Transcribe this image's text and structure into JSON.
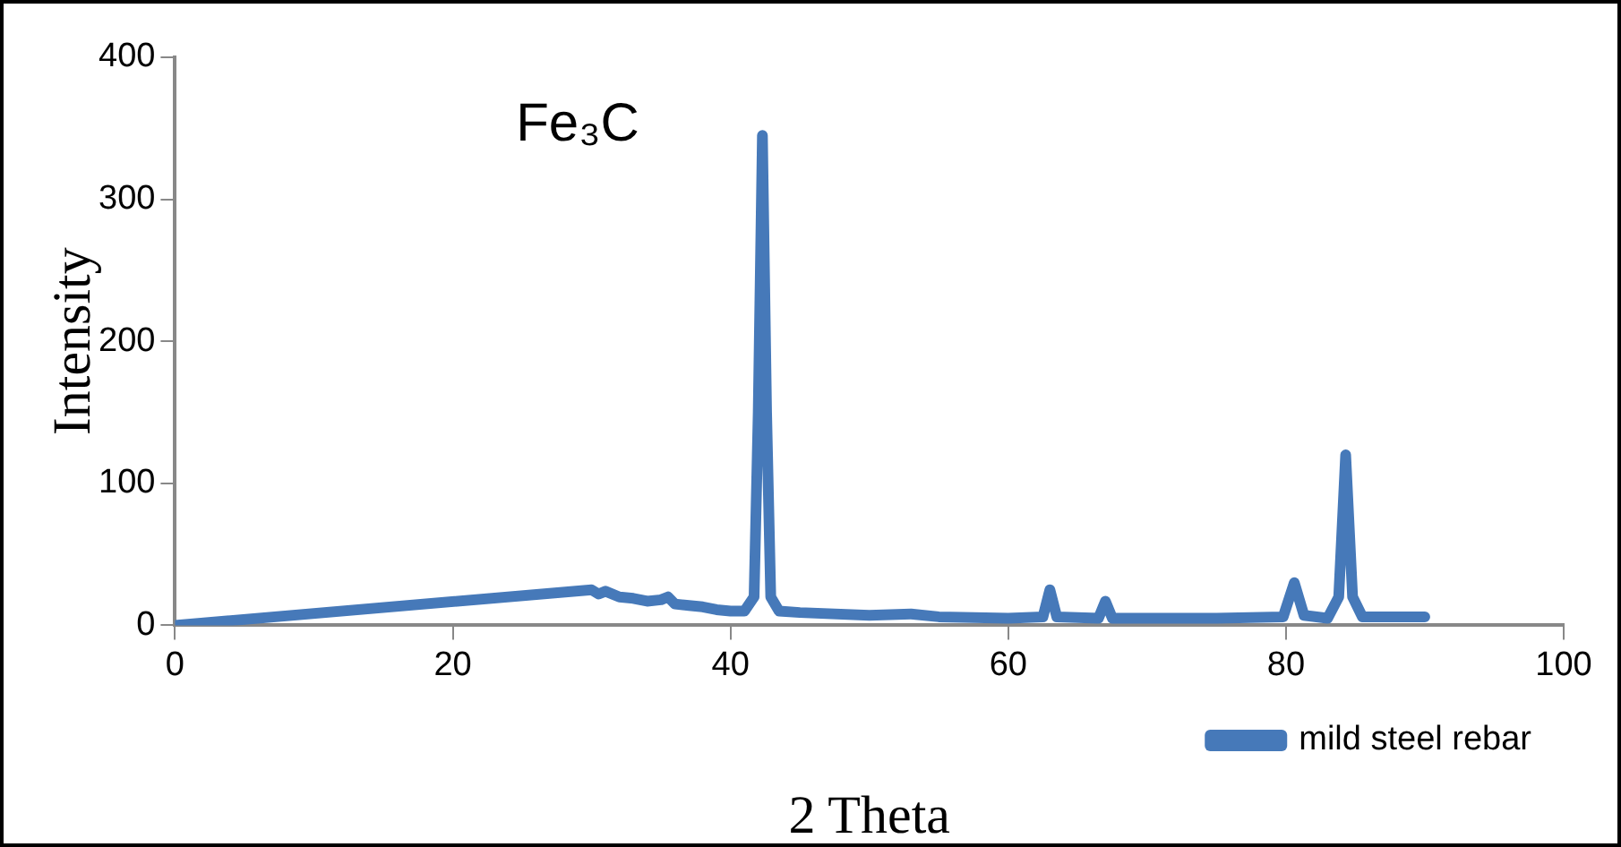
{
  "chart_data": {
    "type": "line",
    "xlabel": "2 Theta",
    "ylabel": "Intensity",
    "annotations": [
      "Fe₃C"
    ],
    "series": [
      {
        "name": "mild steel rebar",
        "color": "#4679b9",
        "x": [
          0,
          30,
          30.5,
          31,
          32,
          33,
          34,
          35,
          35.5,
          36,
          37,
          38,
          39,
          40,
          41,
          41.7,
          42,
          42.3,
          42.6,
          42.9,
          43.5,
          45,
          50,
          53,
          55,
          60,
          62.5,
          63,
          63.5,
          66.5,
          67,
          67.5,
          70,
          75,
          79.8,
          80.6,
          81.3,
          83,
          83.8,
          84.3,
          84.8,
          85.5,
          88,
          90
        ],
        "values": [
          0,
          25,
          22,
          24,
          20,
          19,
          17,
          18,
          20,
          15,
          14,
          13,
          11,
          10,
          10,
          20,
          150,
          345,
          150,
          20,
          10,
          9,
          7,
          8,
          6,
          5,
          6,
          25,
          6,
          5,
          17,
          5,
          5,
          5,
          6,
          30,
          7,
          5,
          20,
          120,
          20,
          6,
          6,
          6
        ]
      }
    ],
    "xlim": [
      0,
      100
    ],
    "xticks": [
      0,
      20,
      40,
      60,
      80,
      100
    ],
    "ylim": [
      0,
      400
    ],
    "yticks": [
      0,
      100,
      200,
      300,
      400
    ],
    "grid": false,
    "legend": "bottom right",
    "marker": "none",
    "line_style": "solid"
  }
}
